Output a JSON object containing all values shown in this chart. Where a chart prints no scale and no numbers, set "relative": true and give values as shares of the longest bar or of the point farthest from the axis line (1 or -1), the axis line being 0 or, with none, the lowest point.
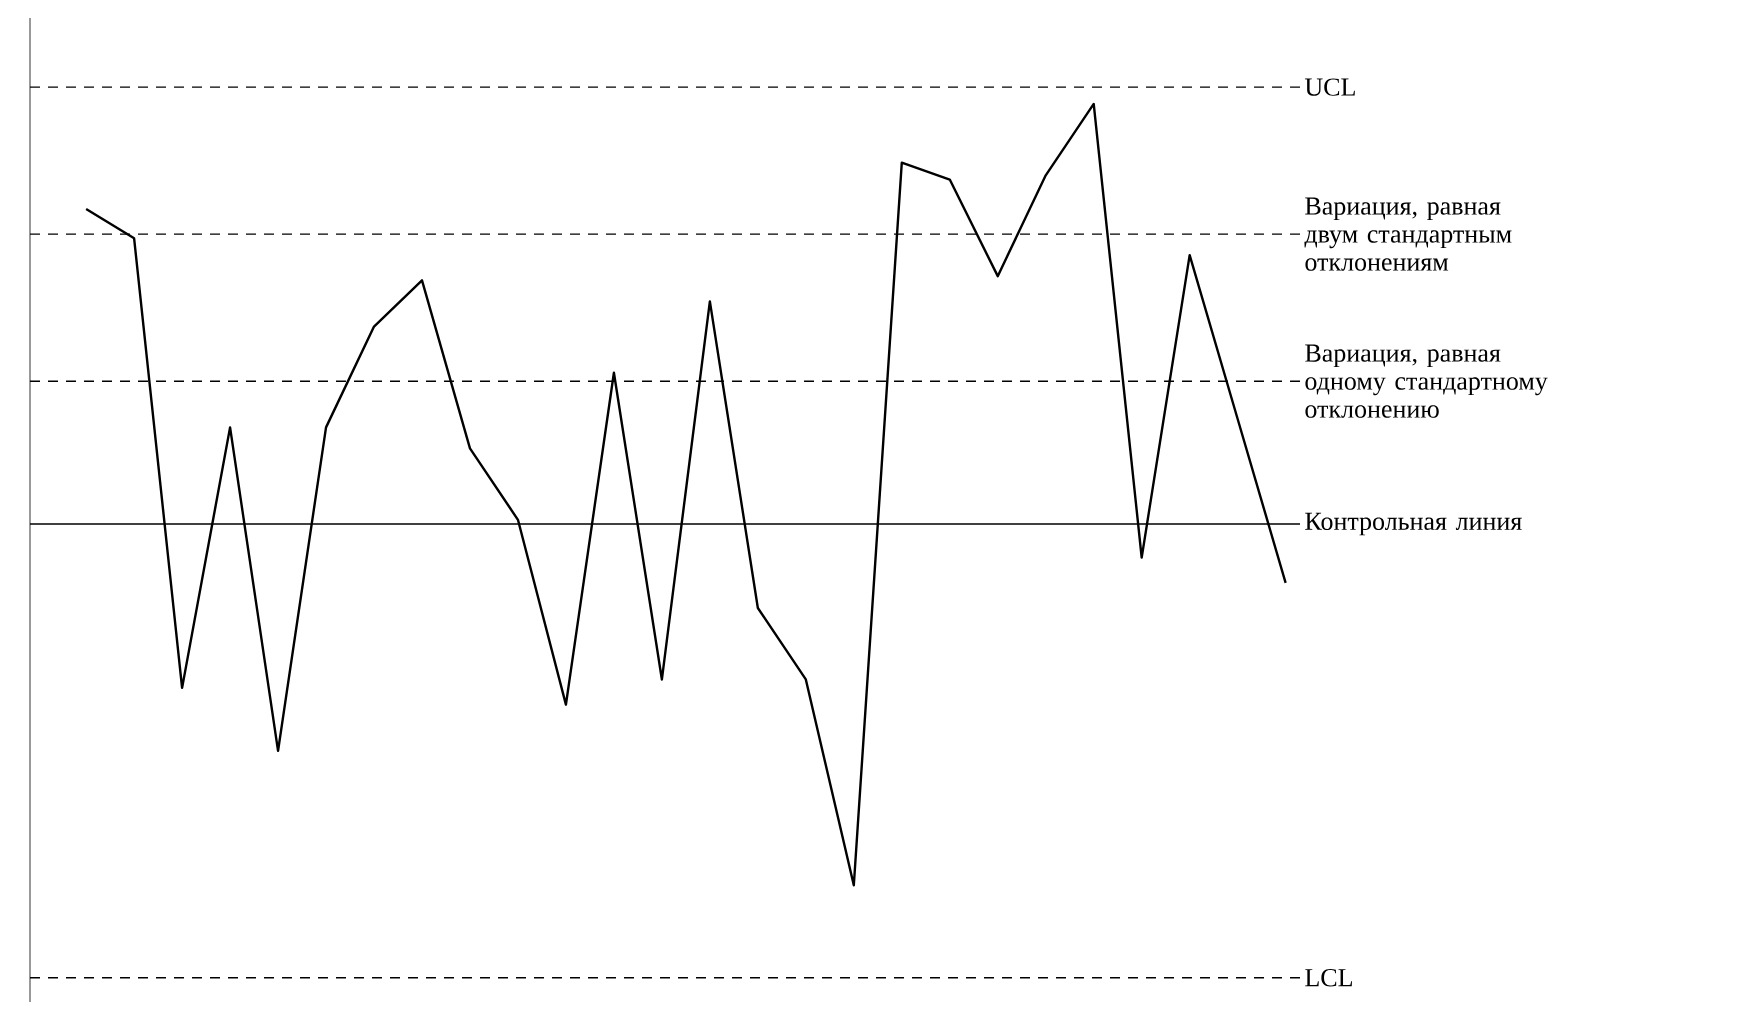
{
  "chart_data": {
    "type": "line",
    "relative": true,
    "categories": [
      null,
      null,
      null,
      null,
      null,
      null,
      null,
      null,
      null,
      null,
      null,
      null,
      null,
      null,
      null,
      null,
      null,
      null,
      null,
      null,
      null,
      null,
      null,
      null,
      null,
      null
    ],
    "series": [
      {
        "color": "#000000",
        "values": [
          0.75,
          0.68,
          -0.39,
          0.23,
          -0.54,
          0.23,
          0.47,
          0.58,
          0.18,
          0.01,
          -0.43,
          0.36,
          -0.37,
          0.53,
          -0.2,
          -0.37,
          -0.86,
          0.86,
          0.82,
          0.59,
          0.83,
          1,
          -0.08,
          0.64,
          0.25,
          -0.14
        ]
      }
    ],
    "ref_lines": [
      {
        "axis": "y",
        "value": 1.04,
        "label": "UCL",
        "line_style": "dashed",
        "color": "#000000"
      },
      {
        "axis": "y",
        "value": 0.69,
        "label": "Вариация, равная двум стандартным отклонениям",
        "line_style": "dashed",
        "color": "#000000"
      },
      {
        "axis": "y",
        "value": 0.34,
        "label": "Вариация, равная одному стандартному отклонению",
        "line_style": "dashed",
        "color": "#000000"
      },
      {
        "axis": "y",
        "value": 0,
        "label": "Контрольная линия",
        "line_style": "solid",
        "color": "#000000"
      },
      {
        "axis": "y",
        "value": -1.08,
        "label": "LCL",
        "line_style": "dashed",
        "color": "#000000"
      }
    ],
    "marker": "none",
    "line_style": "solid"
  }
}
